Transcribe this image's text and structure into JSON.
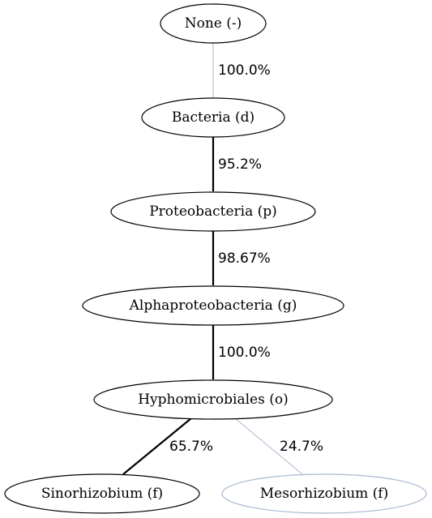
{
  "colors": {
    "strong": "#000000",
    "weak": "#a9b8d3"
  },
  "nodes": {
    "none": {
      "label": "None (-)",
      "style": "strong"
    },
    "bacteria": {
      "label": "Bacteria (d)",
      "style": "strong"
    },
    "proteobacteria": {
      "label": "Proteobacteria (p)",
      "style": "strong"
    },
    "alphaproteobacteria": {
      "label": "Alphaproteobacteria (g)",
      "style": "strong"
    },
    "hyphomicrobiales": {
      "label": "Hyphomicrobiales (o)",
      "style": "strong"
    },
    "sinorhizobium": {
      "label": "Sinorhizobium (f)",
      "style": "strong"
    },
    "mesorhizobium": {
      "label": "Mesorhizobium (f)",
      "style": "weak"
    }
  },
  "edges": {
    "none_bacteria": {
      "from": "None (-)",
      "to": "Bacteria (d)",
      "label": "100.0%",
      "style": "weak"
    },
    "bacteria_proteobacteria": {
      "from": "Bacteria (d)",
      "to": "Proteobacteria (p)",
      "label": "95.2%",
      "style": "strong"
    },
    "proteobacteria_alphaproteobacteria": {
      "from": "Proteobacteria (p)",
      "to": "Alphaproteobacteria (g)",
      "label": "98.67%",
      "style": "strong"
    },
    "alphaproteobacteria_hyphomicrobiales": {
      "from": "Alphaproteobacteria (g)",
      "to": "Hyphomicrobiales (o)",
      "label": "100.0%",
      "style": "strong"
    },
    "hyphomicrobiales_sinorhizobium": {
      "from": "Hyphomicrobiales (o)",
      "to": "Sinorhizobium (f)",
      "label": "65.7%",
      "style": "strong"
    },
    "hyphomicrobiales_mesorhizobium": {
      "from": "Hyphomicrobiales (o)",
      "to": "Mesorhizobium (f)",
      "label": "24.7%",
      "style": "weak"
    }
  }
}
